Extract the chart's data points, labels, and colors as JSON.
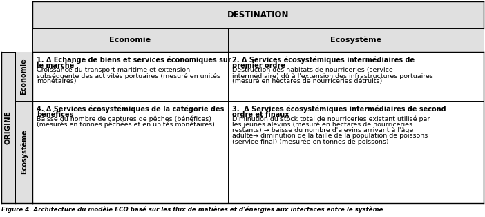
{
  "title_row": "DESTINATION",
  "col_headers": [
    "Economie",
    "Ecosystème"
  ],
  "cell_11_bold": "1. Δ Echange de biens et services économiques sur\nle marché",
  "cell_11_normal": "Croissance du transport maritime et extension\nsubséquente des activités portuaires (mesuré en unités\nmonétaires)",
  "cell_12_bold": "2. Δ Services écosystémiques intermédiaires de\npremier ordre",
  "cell_12_normal": "Destruction des habitats de nourriceries (service\nintermédiaire) dû à l'extension des infrastructures portuaires\n(mesuré en hectares de nourriceries détruits)",
  "cell_21_bold": "4. Δ Services écosystémiques de la catégorie des\nbénéfices",
  "cell_21_normal": "Baisse du nombre de captures de pêches (bénéfices)\n(mesurés en tonnes pêchées et en unités monétaires).",
  "cell_22_bold": "3.  Δ Services écosystémiques intermédiaires de second\nordre et finaux",
  "cell_22_normal": "Diminution du stock total de nourriceries existant utilisé par\nles jeunes alevins (mesuré en hectares de nourriceries\nrestants) → baisse du nombre d'alevins arrivant à l'âge\nadulte→ diminution de la taille de la population de poissons\n(service final) (mesurée en tonnes de poissons)",
  "origine_label": "ORIGINE",
  "row1_label": "Economie",
  "row2_label": "Ecosystème",
  "caption": "Figure 4. Architecture du modèle ECO basé sur les flux de matières et d'énergies aux interfaces entre le système",
  "bg_header": "#e0e0e0",
  "bg_white": "#ffffff",
  "figsize": [
    7.02,
    3.14
  ],
  "dpi": 100
}
